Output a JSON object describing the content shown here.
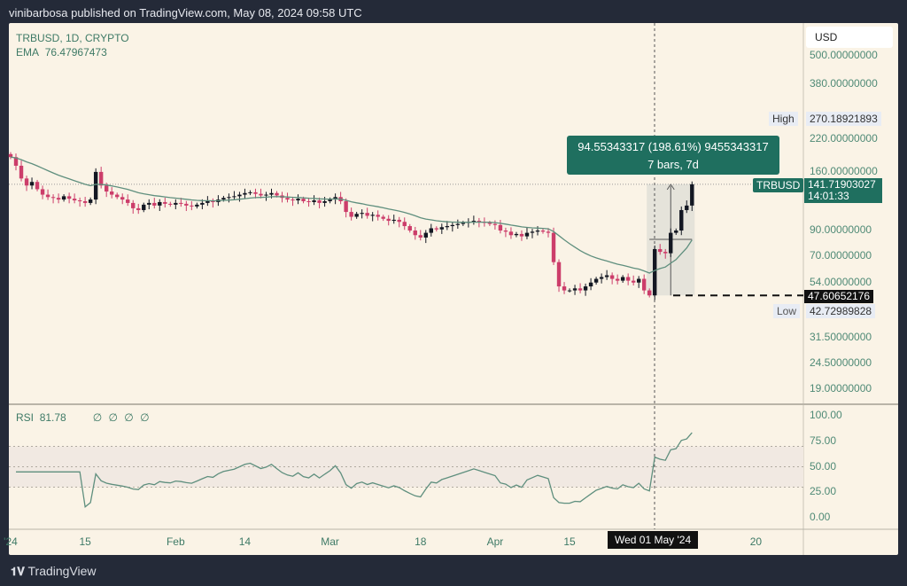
{
  "header": {
    "published": "vinibarbosa published on TradingView.com, May 08, 2024 09:58 UTC"
  },
  "legend": {
    "symbol": "TRBUSD, 1D, CRYPTO",
    "ema_label": "EMA",
    "ema_value": "76.47967473"
  },
  "rsi_legend": {
    "label": "RSI",
    "value": "81.78",
    "empty": "∅ ∅ ∅ ∅"
  },
  "currency": "USD",
  "price_axis": [
    {
      "label": "500.00000000",
      "v": 500
    },
    {
      "label": "380.00000000",
      "v": 380
    },
    {
      "label": "220.00000000",
      "v": 220
    },
    {
      "label": "160.00000000",
      "v": 160
    },
    {
      "label": "90.00000000",
      "v": 90
    },
    {
      "label": "70.00000000",
      "v": 70
    },
    {
      "label": "54.00000000",
      "v": 54
    },
    {
      "label": "31.50000000",
      "v": 31.5
    },
    {
      "label": "24.50000000",
      "v": 24.5
    },
    {
      "label": "19.00000000",
      "v": 19
    }
  ],
  "high": {
    "label": "High",
    "value": "270.18921893"
  },
  "low": {
    "label": "Low",
    "value": "42.72989828"
  },
  "last": {
    "symbol": "TRBUSD",
    "price": "141.71903027",
    "countdown": "14:01:33"
  },
  "crosshair_price": "47.60652176",
  "measure": {
    "line1": "94.55343317 (198.61%) 9455343317",
    "line2": "7 bars, 7d"
  },
  "rsi_axis": [
    "100.00",
    "75.00",
    "50.00",
    "25.00",
    "0.00"
  ],
  "time_axis": [
    {
      "label": "'24",
      "day": 0
    },
    {
      "label": "15",
      "day": 14
    },
    {
      "label": "Feb",
      "day": 31
    },
    {
      "label": "14",
      "day": 44
    },
    {
      "label": "Mar",
      "day": 60
    },
    {
      "label": "18",
      "day": 77
    },
    {
      "label": "Apr",
      "day": 91
    },
    {
      "label": "15",
      "day": 105
    },
    {
      "label": "20",
      "day": 140
    }
  ],
  "crosshair_date": "Wed 01 May '24",
  "footer": "TradingView",
  "colors": {
    "up": "#131722",
    "down": "#cc3d6a",
    "ema": "#5f8f7e",
    "accent": "#1f6f5f"
  },
  "chart_data": {
    "type": "candlestick",
    "title": "TRBUSD, 1D, CRYPTO",
    "x_start": "2024-01-01",
    "closes": [
      185,
      170,
      150,
      140,
      145,
      135,
      128,
      125,
      124,
      122,
      126,
      123,
      121,
      120,
      118,
      122,
      160,
      140,
      132,
      128,
      125,
      122,
      118,
      112,
      110,
      116,
      118,
      115,
      119,
      117,
      116,
      118,
      117,
      115,
      114,
      116,
      118,
      120,
      119,
      122,
      124,
      125,
      126,
      128,
      130,
      131,
      129,
      127,
      128,
      130,
      127,
      124,
      122,
      121,
      123,
      120,
      119,
      121,
      118,
      120,
      122,
      125,
      120,
      108,
      103,
      106,
      107,
      104,
      105,
      103,
      101,
      99,
      100,
      98,
      94,
      90,
      86,
      84,
      88,
      92,
      91,
      93,
      94,
      95,
      96,
      97,
      98,
      99,
      98,
      97,
      96,
      95,
      90,
      89,
      86,
      87,
      85,
      88,
      89,
      90,
      89,
      88,
      66,
      52,
      50,
      50,
      51,
      50,
      52,
      54,
      56,
      57,
      58,
      56,
      55,
      57,
      55,
      54,
      56,
      50,
      47.6,
      75,
      73,
      72,
      88,
      90,
      110,
      115,
      141.72
    ],
    "ema_period": 20,
    "rsi_period": 14,
    "rsi_bands": [
      30,
      70
    ],
    "yscale": "log"
  }
}
